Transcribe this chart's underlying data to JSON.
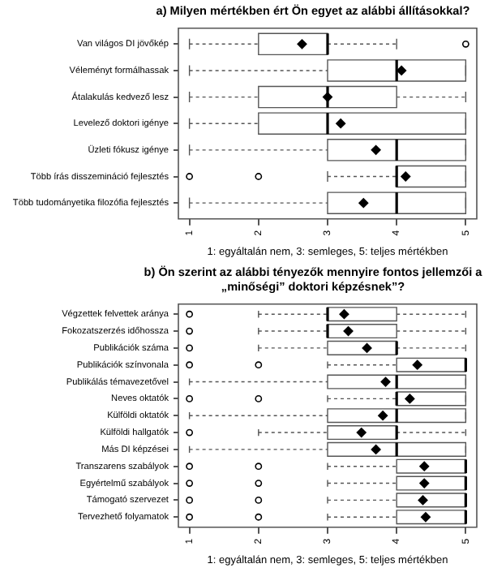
{
  "chart_data": [
    {
      "type": "box",
      "orientation": "horizontal",
      "title": "a)  Milyen mértékben ért Ön egyet az alábbi állításokkal?",
      "xlabel": "1: egyáltalán nem, 3: semleges, 5: teljes mértékben",
      "categories": [
        "Van világos DI jövőkép",
        "Véleményt formálhassak",
        "Átalakulás kedvező lesz",
        "Levelező doktori igénye",
        "Üzleti fókusz igénye",
        "Több írás disszemináció fejlesztés",
        "Több tudományetika filozófia fejlesztés"
      ],
      "boxes": [
        {
          "low": 1,
          "q1": 2,
          "median": 3,
          "q3": 3,
          "high": 4,
          "mean": 2.63,
          "outliers": [
            5
          ]
        },
        {
          "low": 1,
          "q1": 3,
          "median": 4,
          "q3": 5,
          "high": 5,
          "mean": 4.07
        },
        {
          "low": 1,
          "q1": 2,
          "median": 3,
          "q3": 4,
          "high": 5,
          "mean": 3.0
        },
        {
          "low": 1,
          "q1": 2,
          "median": 3,
          "q3": 5,
          "high": 5,
          "mean": 3.19
        },
        {
          "low": 1,
          "q1": 3,
          "median": 4,
          "q3": 5,
          "high": 5,
          "mean": 3.7
        },
        {
          "low": 3,
          "q1": 4,
          "median": 4,
          "q3": 5,
          "high": 5,
          "mean": 4.13,
          "outliers": [
            1,
            2
          ]
        },
        {
          "low": 1,
          "q1": 3,
          "median": 4,
          "q3": 5,
          "high": 5,
          "mean": 3.52
        }
      ],
      "xlim": [
        0.84,
        5.16
      ],
      "xticks": [
        1,
        2,
        3,
        4,
        5
      ],
      "grid": false,
      "legend": false,
      "marker": "diamond"
    },
    {
      "type": "box",
      "orientation": "horizontal",
      "title": "b)  Ön szerint az alábbi tényezők mennyire fontos jellemzői a „minőségi” doktori képzésnek”?",
      "xlabel": "1: egyáltalán nem, 3: semleges, 5: teljes mértékben",
      "categories": [
        "Végzettek felvettek aránya",
        "Fokozatszerzés időhossza",
        "Publikációk száma",
        "Publikációk színvonala",
        "Publikálás témavezetővel",
        "Neves oktatók",
        "Külföldi oktatók",
        "Külföldi hallgatók",
        "Más DI képzései",
        "Transzarens szabályok",
        "Egyértelmű szabályok",
        "Támogató szervezet",
        "Tervezhető folyamatok"
      ],
      "boxes": [
        {
          "low": 2,
          "q1": 3,
          "median": 3,
          "q3": 4,
          "high": 5,
          "mean": 3.24,
          "outliers": [
            1
          ]
        },
        {
          "low": 2,
          "q1": 3,
          "median": 3,
          "q3": 4,
          "high": 5,
          "mean": 3.3,
          "outliers": [
            1
          ]
        },
        {
          "low": 2,
          "q1": 3,
          "median": 4,
          "q3": 4,
          "high": 5,
          "mean": 3.57,
          "outliers": [
            1
          ]
        },
        {
          "low": 3,
          "q1": 4,
          "median": 5,
          "q3": 5,
          "high": 5,
          "mean": 4.3,
          "outliers": [
            1,
            2
          ]
        },
        {
          "low": 1,
          "q1": 3,
          "median": 4,
          "q3": 5,
          "high": 5,
          "mean": 3.84
        },
        {
          "low": 3,
          "q1": 4,
          "median": 4,
          "q3": 5,
          "high": 5,
          "mean": 4.19,
          "outliers": [
            1,
            2
          ]
        },
        {
          "low": 1,
          "q1": 3,
          "median": 4,
          "q3": 5,
          "high": 5,
          "mean": 3.8
        },
        {
          "low": 2,
          "q1": 3,
          "median": 4,
          "q3": 4,
          "high": 5,
          "mean": 3.49,
          "outliers": [
            1
          ]
        },
        {
          "low": 1,
          "q1": 3,
          "median": 4,
          "q3": 5,
          "high": 5,
          "mean": 3.7
        },
        {
          "low": 3,
          "q1": 4,
          "median": 5,
          "q3": 5,
          "high": 5,
          "mean": 4.4,
          "outliers": [
            1,
            2
          ]
        },
        {
          "low": 3,
          "q1": 4,
          "median": 5,
          "q3": 5,
          "high": 5,
          "mean": 4.4,
          "outliers": [
            1,
            2
          ]
        },
        {
          "low": 3,
          "q1": 4,
          "median": 5,
          "q3": 5,
          "high": 5,
          "mean": 4.38,
          "outliers": [
            1,
            2
          ]
        },
        {
          "low": 3,
          "q1": 4,
          "median": 5,
          "q3": 5,
          "high": 5,
          "mean": 4.42,
          "outliers": [
            1,
            2
          ]
        }
      ],
      "xlim": [
        0.84,
        5.16
      ],
      "xticks": [
        1,
        2,
        3,
        4,
        5
      ],
      "grid": false,
      "legend": false,
      "marker": "diamond"
    }
  ]
}
